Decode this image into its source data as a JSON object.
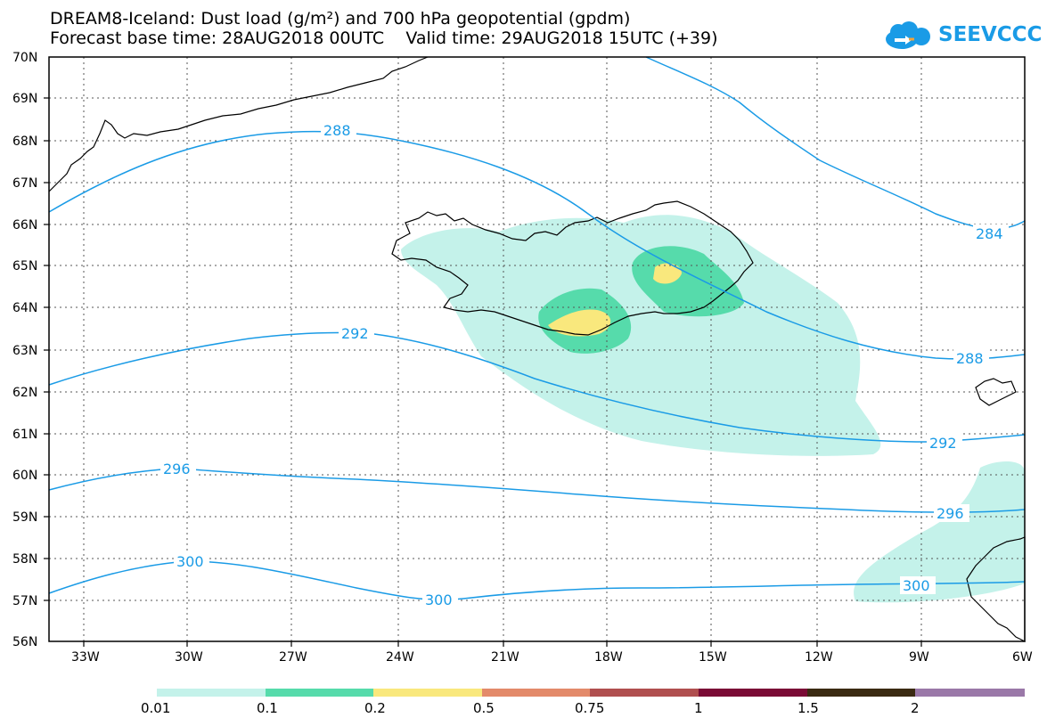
{
  "title_line1": "DREAM8-Iceland: Dust load (g/m²) and 700 hPa geopotential (gpdm)",
  "title_line2": "Forecast base time: 28AUG2018 00UTC    Valid time: 29AUG2018 15UTC (+39)",
  "logo_text": "SEEVCCC",
  "lat_labels": [
    "70N",
    "69N",
    "68N",
    "67N",
    "66N",
    "65N",
    "64N",
    "63N",
    "62N",
    "61N",
    "60N",
    "59N",
    "58N",
    "57N",
    "56N"
  ],
  "lon_labels": [
    "33W",
    "30W",
    "27W",
    "24W",
    "21W",
    "18W",
    "15W",
    "12W",
    "9W",
    "6W"
  ],
  "contour_labels": [
    "288",
    "284",
    "292",
    "288",
    "292",
    "296",
    "296",
    "300",
    "300",
    "300"
  ],
  "legend": {
    "labels": [
      "0.01",
      "0.1",
      "0.2",
      "0.5",
      "0.75",
      "1",
      "1.5",
      "2"
    ],
    "colors": [
      "#c4f2ea",
      "#56dbab",
      "#f9e87d",
      "#e38a6a",
      "#b04f4f",
      "#7a0a35",
      "#3a2a12",
      "#9a78a8"
    ]
  },
  "colors": {
    "contour": "#1a9be6",
    "dust_low": "#c4f2ea",
    "dust_mid": "#56dbab",
    "dust_high": "#f9e87d"
  }
}
